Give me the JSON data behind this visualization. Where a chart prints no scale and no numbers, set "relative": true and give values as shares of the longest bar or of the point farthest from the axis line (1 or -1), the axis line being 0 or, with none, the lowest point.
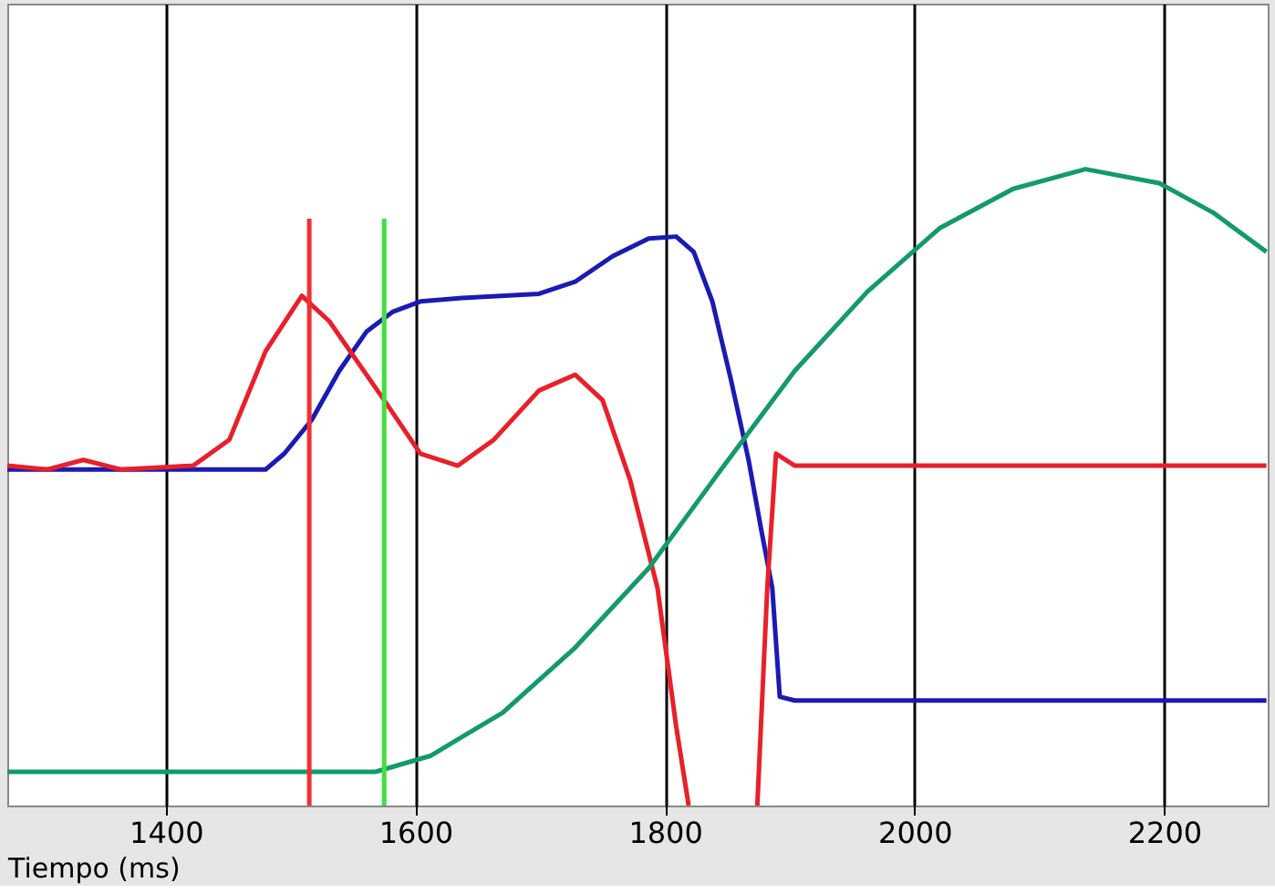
{
  "chart_data": {
    "type": "line",
    "relative": true,
    "xlabel": "Tiempo (ms)",
    "xlim": [
      1273,
      2283
    ],
    "xticks": [
      1400,
      1600,
      1800,
      2000,
      2200
    ],
    "grid": "x",
    "marker": "none",
    "line_style": "solid",
    "series": [
      {
        "color": "#1a1ab4",
        "x": [
          1273,
          1480,
          1495,
          1517,
          1539,
          1561,
          1582,
          1604,
          1641,
          1699,
          1728,
          1758,
          1787,
          1809,
          1823,
          1838,
          1853,
          1867,
          1877,
          1886,
          1892,
          1904,
          2282
        ],
        "values": [
          0.528,
          0.528,
          0.553,
          0.606,
          0.683,
          0.745,
          0.776,
          0.792,
          0.798,
          0.804,
          0.823,
          0.863,
          0.891,
          0.894,
          0.87,
          0.792,
          0.668,
          0.543,
          0.435,
          0.342,
          0.171,
          0.165,
          0.165
        ]
      },
      {
        "color": "#e8202a",
        "x": [
          1273,
          1305,
          1334,
          1364,
          1422,
          1451,
          1480,
          1509,
          1531,
          1553,
          1575,
          1604,
          1634,
          1663,
          1699,
          1728,
          1750,
          1772,
          1794,
          1809,
          1819,
          1850,
          1874,
          1882,
          1889,
          1904,
          2282
        ],
        "values": [
          0.534,
          0.528,
          0.543,
          0.528,
          0.534,
          0.575,
          0.714,
          0.801,
          0.761,
          0.699,
          0.637,
          0.553,
          0.534,
          0.575,
          0.652,
          0.677,
          0.637,
          0.512,
          0.342,
          0.124,
          0,
          null,
          0,
          0.342,
          0.553,
          0.534,
          0.534
        ]
      },
      {
        "color": "#139a6a",
        "x": [
          1273,
          1568,
          1612,
          1670,
          1728,
          1787,
          1845,
          1904,
          1962,
          2020,
          2079,
          2137,
          2196,
          2239,
          2282
        ],
        "values": [
          0.053,
          0.053,
          0.078,
          0.146,
          0.248,
          0.373,
          0.528,
          0.683,
          0.807,
          0.907,
          0.969,
          1.0,
          0.978,
          0.932,
          0.87
        ]
      }
    ],
    "ref_lines": [
      {
        "axis": "x",
        "value": 1515,
        "color": "#f03030"
      },
      {
        "axis": "x",
        "value": 1575,
        "color": "#40e040"
      }
    ]
  }
}
